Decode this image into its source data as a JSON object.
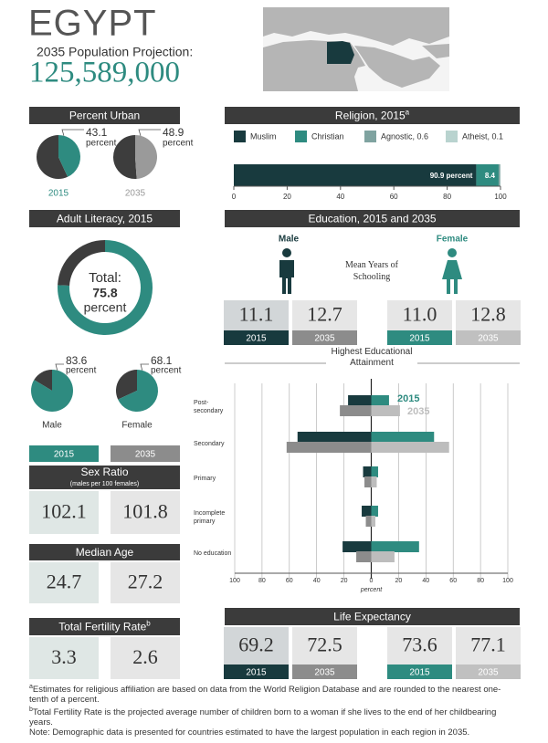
{
  "header": {
    "country": "EGYPT",
    "projection_label": "2035 Population Projection:",
    "projection": "125,589,000"
  },
  "chart_data": [
    {
      "type": "pie",
      "title": "Percent Urban",
      "unit": "percent",
      "rest_color": "#3d3d3d",
      "pies": [
        {
          "name": "2015",
          "value": 43.1,
          "color": "#2e8b80"
        },
        {
          "name": "2035",
          "value": 48.9,
          "color": "#9a9a9a"
        }
      ]
    },
    {
      "type": "stacked-bar",
      "title": "Religion, 2015",
      "title_note": "a",
      "xlim": [
        0,
        100
      ],
      "xticks": [
        0,
        20,
        40,
        60,
        80,
        100
      ],
      "series": [
        {
          "name": "Muslim",
          "color": "#183a3e",
          "values": [
            90.9
          ],
          "value_labels": [
            "90.9 percent"
          ]
        },
        {
          "name": "Christian",
          "color": "#2e8b80",
          "values": [
            8.4
          ],
          "value_labels": [
            "8.4"
          ]
        },
        {
          "name": "Agnostic, 0.6",
          "color": "#7fa3a0",
          "values": [
            0.6
          ]
        },
        {
          "name": "Atheist, 0.1",
          "color": "#b9d3cf",
          "values": [
            0.1
          ]
        }
      ]
    },
    {
      "type": "donut",
      "title": "Adult Literacy, 2015",
      "total_label": "Total:",
      "total": 75.8,
      "unit": "percent",
      "color": "#2e8b80",
      "rest_color": "#3d3d3d",
      "pies": [
        {
          "name": "Male",
          "value": 83.6
        },
        {
          "name": "Female",
          "value": 68.1
        }
      ]
    },
    {
      "type": "pyramid",
      "title": "Highest Educational Attainment",
      "xlabel": "percent",
      "categories": [
        "Post-secondary",
        "Secondary",
        "Primary",
        "Incomplete primary",
        "No education"
      ],
      "xlim": [
        -100,
        100
      ],
      "xticks": [
        {
          "value": -100,
          "label": "100"
        },
        {
          "value": -80,
          "label": "80"
        },
        {
          "value": -60,
          "label": "60"
        },
        {
          "value": -40,
          "label": "40"
        },
        {
          "value": -20,
          "label": "20"
        },
        0,
        20,
        40,
        60,
        80,
        100
      ],
      "series": [
        {
          "name": "2015",
          "color": "#2e8b80",
          "male_color": "#183a3e",
          "male": [
            -17,
            -54,
            -6,
            -7,
            -21
          ],
          "female": [
            13,
            46,
            5,
            5,
            35
          ]
        },
        {
          "name": "2035",
          "color": "#bdbdbd",
          "male_color": "#8c8c8c",
          "male": [
            -23,
            -62,
            -5,
            -4,
            -11
          ],
          "female": [
            21,
            57,
            4,
            3,
            17
          ]
        }
      ]
    }
  ],
  "education": {
    "title": "Education, 2015 and 2035",
    "mean_label": "Mean Years of Schooling",
    "male": {
      "label": "Male",
      "values": [
        {
          "value": "11.1",
          "year": "2015"
        },
        {
          "value": "12.7",
          "year": "2035"
        }
      ]
    },
    "female": {
      "label": "Female",
      "values": [
        {
          "value": "11.0",
          "year": "2015"
        },
        {
          "value": "12.8",
          "year": "2035"
        }
      ]
    }
  },
  "sex_ratio": {
    "years": [
      "2015",
      "2035"
    ],
    "title": "Sex Ratio",
    "subtitle": "(males per 100 females)",
    "values": [
      "102.1",
      "101.8"
    ]
  },
  "median_age": {
    "title": "Median Age",
    "values": [
      "24.7",
      "27.2"
    ]
  },
  "fertility": {
    "title": "Total Fertility Rate",
    "note": "b",
    "values": [
      "3.3",
      "2.6"
    ]
  },
  "life_expectancy": {
    "title": "Life Expectancy",
    "values": [
      {
        "value": "69.2",
        "year": "2015"
      },
      {
        "value": "72.5",
        "year": "2035"
      },
      {
        "value": "73.6",
        "year": "2015"
      },
      {
        "value": "77.1",
        "year": "2035"
      }
    ]
  },
  "footnotes": [
    {
      "mark": "a",
      "text": "Estimates for religious affiliation are based on data from the World Religion Database and are rounded to the nearest one-tenth of a percent."
    },
    {
      "mark": "b",
      "text": "Total Fertility Rate is the projected average number of children born to a woman if she lives to the end of her childbearing years."
    },
    {
      "text": "Note: Demographic data is presented for countries estimated to have the largest population in each region in 2035."
    }
  ]
}
